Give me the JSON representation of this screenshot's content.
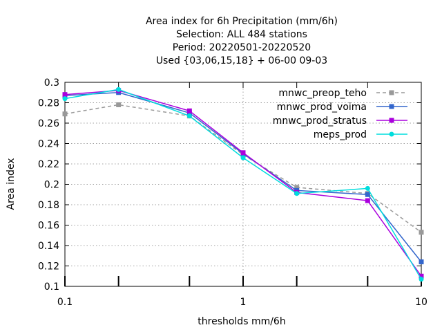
{
  "chart_data": {
    "type": "line",
    "title_lines": [
      "Area index  for 6h Precipitation (mm/6h)",
      "Selection: ALL    484 stations",
      "Period: 20220501-20220520",
      "Used {03,06,15,18} + 06-00 09-03"
    ],
    "xlabel": "thresholds mm/6h",
    "ylabel": "Area index",
    "x_scale": "log",
    "xlim": [
      0.1,
      10
    ],
    "ylim": [
      0.1,
      0.3
    ],
    "x_ticks": [
      0.1,
      1,
      10
    ],
    "x_tick_labels": [
      "0.1",
      "1",
      "10"
    ],
    "y_ticks": [
      0.1,
      0.12,
      0.14,
      0.16,
      0.18,
      0.2,
      0.22,
      0.24,
      0.26,
      0.28,
      0.3
    ],
    "y_tick_labels": [
      "0.1",
      "0.12",
      "0.14",
      "0.16",
      "0.18",
      "0.2",
      "0.22",
      "0.24",
      "0.26",
      "0.28",
      "0.3"
    ],
    "grid": true,
    "legend_position": "top-right",
    "x": [
      0.1,
      0.2,
      0.5,
      1,
      2,
      5,
      10
    ],
    "series": [
      {
        "name": "mnwc_preop_teho",
        "color": "#999999",
        "dashed": true,
        "values": [
          0.269,
          0.278,
          0.267,
          0.229,
          0.197,
          0.191,
          0.153
        ]
      },
      {
        "name": "mnwc_prod_voima",
        "color": "#3366cc",
        "dashed": false,
        "values": [
          0.287,
          0.29,
          0.27,
          0.23,
          0.194,
          0.19,
          0.124
        ]
      },
      {
        "name": "mnwc_prod_stratus",
        "color": "#aa00dd",
        "dashed": false,
        "values": [
          0.288,
          0.292,
          0.272,
          0.231,
          0.192,
          0.184,
          0.11
        ]
      },
      {
        "name": "meps_prod",
        "color": "#00dddd",
        "dashed": false,
        "values": [
          0.284,
          0.293,
          0.267,
          0.226,
          0.191,
          0.196,
          0.107
        ]
      }
    ]
  }
}
